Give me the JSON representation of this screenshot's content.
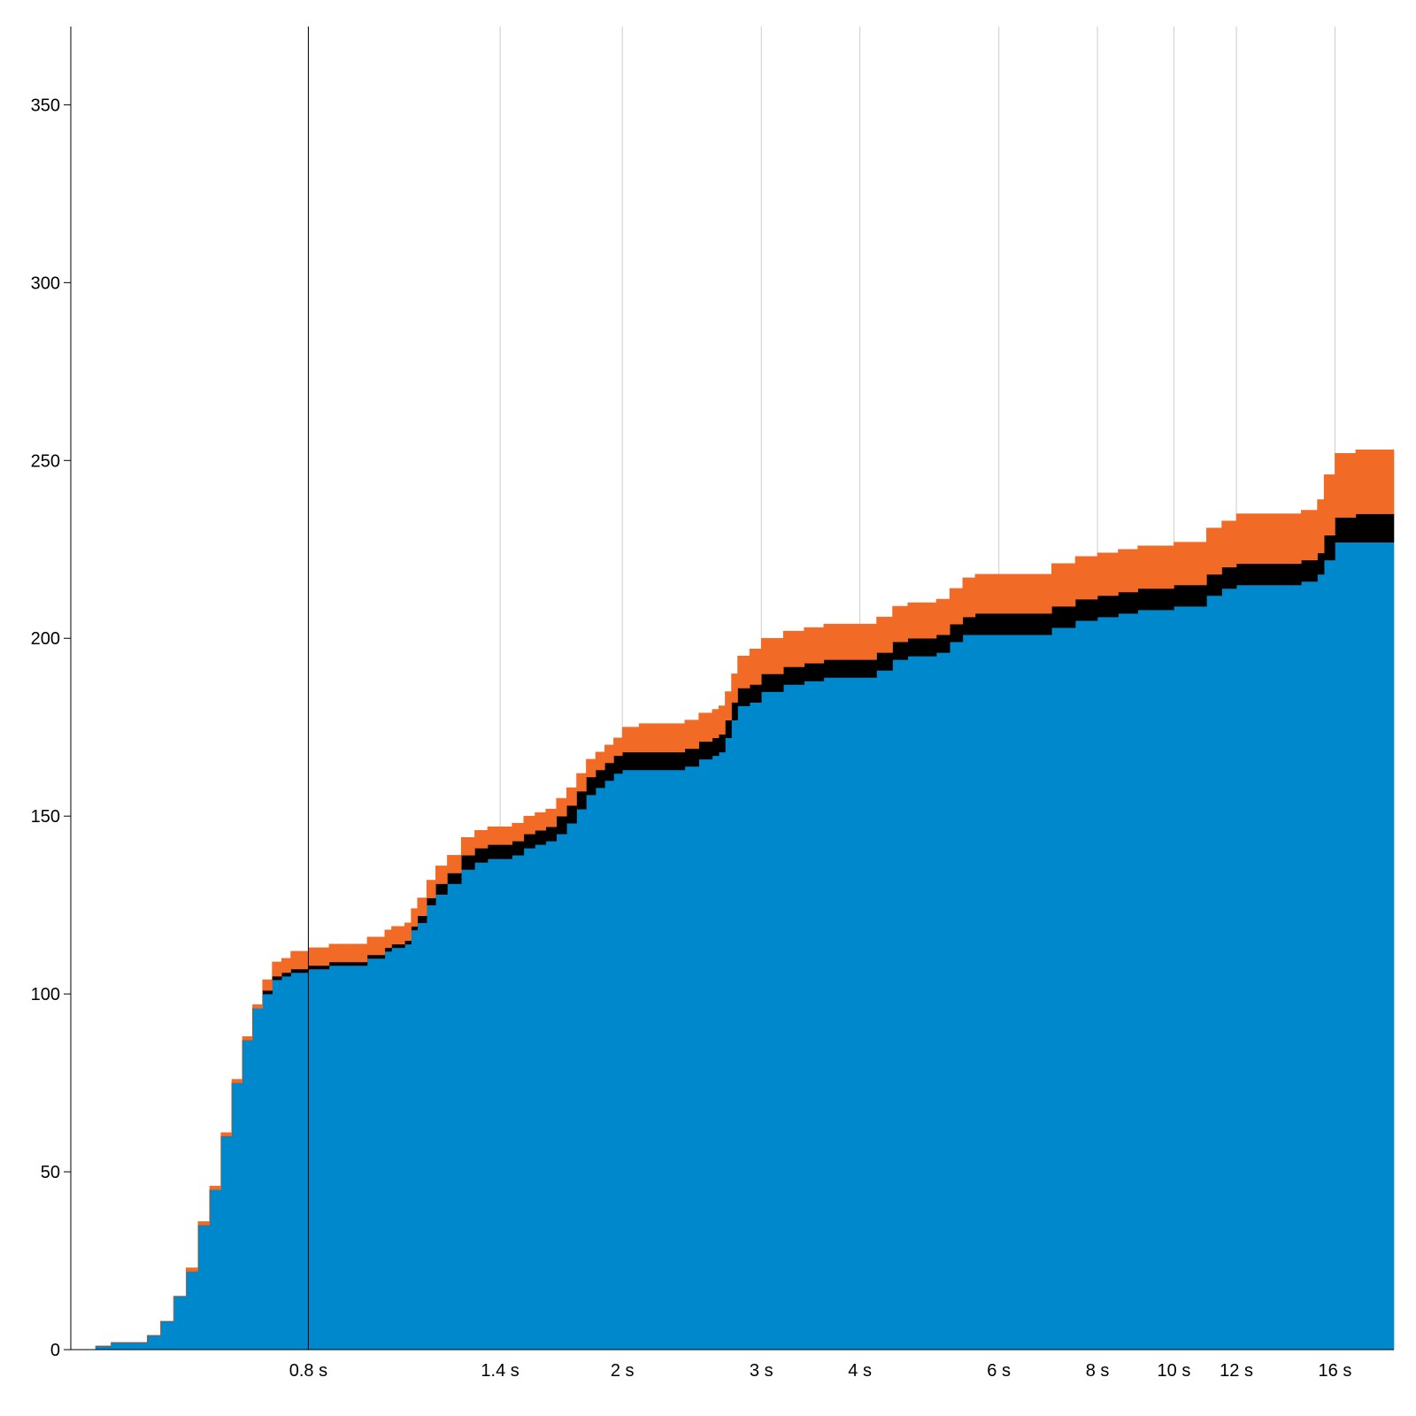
{
  "chart_data": {
    "type": "area",
    "stacked": true,
    "x_scale": "log",
    "x_unit": "s",
    "xlim": [
      0.4,
      19
    ],
    "ylim": [
      0,
      372
    ],
    "grid": true,
    "highlight_x": 0.8,
    "x_ticks": [
      {
        "value": 0.8,
        "label": "0.8 s"
      },
      {
        "value": 1.4,
        "label": "1.4 s"
      },
      {
        "value": 2,
        "label": "2 s"
      },
      {
        "value": 3,
        "label": "3 s"
      },
      {
        "value": 4,
        "label": "4 s"
      },
      {
        "value": 6,
        "label": "6 s"
      },
      {
        "value": 8,
        "label": "8 s"
      },
      {
        "value": 10,
        "label": "10 s"
      },
      {
        "value": 12,
        "label": "12 s"
      },
      {
        "value": 16,
        "label": "16 s"
      }
    ],
    "y_ticks": [
      {
        "value": 0,
        "label": "0"
      },
      {
        "value": 50,
        "label": "50"
      },
      {
        "value": 100,
        "label": "100"
      },
      {
        "value": 150,
        "label": "150"
      },
      {
        "value": 200,
        "label": "200"
      },
      {
        "value": 250,
        "label": "250"
      },
      {
        "value": 300,
        "label": "300"
      },
      {
        "value": 350,
        "label": "350"
      }
    ],
    "x": [
      0.43,
      0.45,
      0.47,
      0.485,
      0.5,
      0.52,
      0.54,
      0.56,
      0.58,
      0.6,
      0.62,
      0.64,
      0.66,
      0.68,
      0.7,
      0.72,
      0.74,
      0.76,
      0.78,
      0.8,
      0.85,
      0.9,
      0.95,
      1.0,
      1.02,
      1.04,
      1.06,
      1.08,
      1.1,
      1.13,
      1.16,
      1.2,
      1.25,
      1.3,
      1.35,
      1.4,
      1.45,
      1.5,
      1.55,
      1.6,
      1.65,
      1.7,
      1.75,
      1.8,
      1.85,
      1.9,
      1.95,
      2.0,
      2.1,
      2.2,
      2.3,
      2.4,
      2.5,
      2.6,
      2.65,
      2.7,
      2.75,
      2.8,
      2.9,
      3.0,
      3.2,
      3.4,
      3.6,
      3.8,
      4.0,
      4.1,
      4.2,
      4.4,
      4.6,
      4.8,
      5.0,
      5.2,
      5.4,
      5.6,
      6.0,
      6.5,
      7.0,
      7.5,
      8.0,
      8.5,
      9.0,
      9.5,
      10.0,
      10.3,
      10.6,
      11.0,
      11.5,
      12.0,
      13.0,
      14.0,
      14.5,
      14.8,
      15.0,
      15.2,
      15.5,
      16.0,
      17.0,
      18.0,
      19.0
    ],
    "series": [
      {
        "color": "#0088cc",
        "values": [
          1,
          2,
          2,
          2,
          4,
          8,
          15,
          22,
          35,
          45,
          60,
          75,
          87,
          96,
          100,
          104,
          105,
          106,
          106,
          107,
          108,
          108,
          110,
          112,
          113,
          113,
          114,
          118,
          120,
          125,
          128,
          131,
          135,
          137,
          138,
          138,
          139,
          141,
          142,
          143,
          145,
          148,
          152,
          156,
          158,
          160,
          162,
          163,
          163,
          163,
          163,
          164,
          166,
          167,
          168,
          172,
          177,
          181,
          182,
          185,
          187,
          188,
          189,
          189,
          189,
          189,
          191,
          194,
          195,
          195,
          196,
          199,
          201,
          201,
          201,
          201,
          203,
          205,
          206,
          207,
          208,
          208,
          209,
          209,
          209,
          212,
          214,
          215,
          215,
          215,
          216,
          216,
          216,
          218,
          222,
          227,
          227,
          227,
          227
        ]
      },
      {
        "color": "#000000",
        "values": [
          0,
          0,
          0,
          0,
          0,
          0,
          0,
          0,
          0,
          0,
          0,
          0,
          0,
          0,
          1,
          1,
          1,
          1,
          1,
          1,
          1,
          1,
          1,
          1,
          1,
          1,
          1,
          1,
          2,
          2,
          3,
          3,
          4,
          4,
          4,
          4,
          4,
          4,
          4,
          4,
          5,
          5,
          5,
          5,
          5,
          5,
          5,
          5,
          5,
          5,
          5,
          5,
          5,
          5,
          5,
          5,
          5,
          5,
          5,
          5,
          5,
          5,
          5,
          5,
          5,
          5,
          5,
          5,
          5,
          5,
          5,
          5,
          5,
          6,
          6,
          6,
          6,
          6,
          6,
          6,
          6,
          6,
          6,
          6,
          6,
          6,
          6,
          6,
          6,
          6,
          6,
          6,
          6,
          6,
          7,
          7,
          8,
          8,
          8
        ]
      },
      {
        "color": "#f26b26",
        "values": [
          0,
          0,
          0,
          0,
          0,
          0,
          0,
          1,
          1,
          1,
          1,
          1,
          1,
          1,
          3,
          4,
          4,
          5,
          5,
          5,
          5,
          5,
          5,
          5,
          5,
          5,
          5,
          5,
          5,
          5,
          5,
          5,
          5,
          5,
          5,
          5,
          5,
          5,
          5,
          5,
          5,
          5,
          5,
          5,
          5,
          5,
          5,
          7,
          8,
          8,
          8,
          8,
          8,
          8,
          8,
          8,
          8,
          9,
          10,
          10,
          10,
          10,
          10,
          10,
          10,
          10,
          10,
          10,
          10,
          10,
          10,
          10,
          11,
          11,
          11,
          11,
          12,
          12,
          12,
          12,
          12,
          12,
          12,
          12,
          12,
          13,
          13,
          14,
          14,
          14,
          14,
          14,
          14,
          15,
          17,
          18,
          18,
          18,
          18
        ]
      }
    ]
  }
}
